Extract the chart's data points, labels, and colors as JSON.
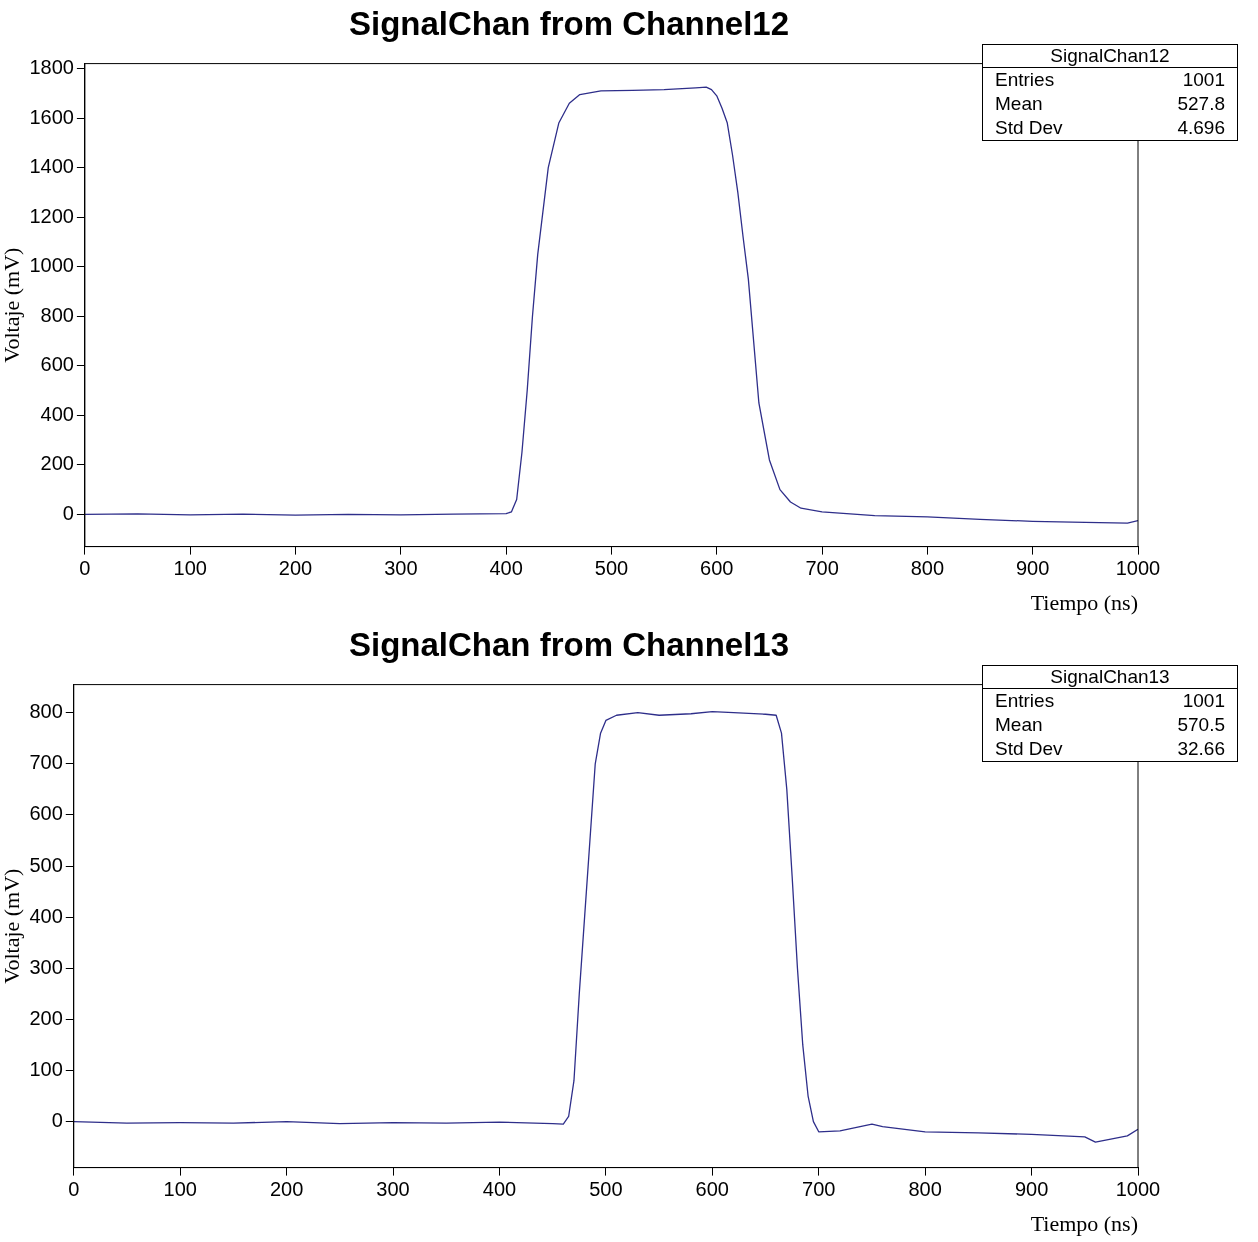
{
  "chart_data": [
    {
      "type": "line",
      "title": "SignalChan from Channel12",
      "xlabel": "Tiempo (ns)",
      "ylabel": "Voltaje (mV)",
      "annotations": [
        "SignalChan12",
        "Entries",
        "1001",
        "Mean",
        "527.8",
        "Std Dev",
        "4.696"
      ],
      "x": [
        0,
        50,
        100,
        150,
        200,
        250,
        300,
        350,
        400,
        405,
        410,
        415,
        420,
        425,
        430,
        440,
        450,
        460,
        470,
        490,
        520,
        550,
        580,
        590,
        595,
        600,
        605,
        610,
        615,
        620,
        625,
        630,
        635,
        640,
        650,
        660,
        670,
        680,
        700,
        750,
        800,
        850,
        900,
        950,
        990,
        1000
      ],
      "series": [
        {
          "color": "#2e2e8a",
          "values": [
            0,
            2,
            -2,
            1,
            -3,
            0,
            -2,
            1,
            3,
            10,
            60,
            250,
            500,
            800,
            1050,
            1400,
            1580,
            1660,
            1695,
            1710,
            1712,
            1715,
            1722,
            1725,
            1715,
            1690,
            1640,
            1580,
            1450,
            1300,
            1120,
            950,
            700,
            450,
            220,
            100,
            50,
            25,
            10,
            -5,
            -10,
            -20,
            -28,
            -32,
            -35,
            -25
          ]
        }
      ],
      "xlim": [
        0,
        1000
      ],
      "xticks": [
        0,
        100,
        200,
        300,
        400,
        500,
        600,
        700,
        800,
        900,
        1000
      ],
      "ylim": [
        -130,
        1820
      ],
      "yticks": [
        0,
        200,
        400,
        600,
        800,
        1000,
        1200,
        1400,
        1600,
        1800
      ],
      "grid": false,
      "legend": false,
      "marker": "none"
    },
    {
      "type": "line",
      "title": "SignalChan from Channel13",
      "xlabel": "Tiempo (ns)",
      "ylabel": "Voltaje (mV)",
      "annotations": [
        "SignalChan13",
        "Entries",
        "1001",
        "Mean",
        "570.5",
        "Std Dev",
        "32.66"
      ],
      "x": [
        0,
        50,
        100,
        150,
        200,
        250,
        300,
        350,
        400,
        450,
        460,
        465,
        470,
        475,
        480,
        485,
        490,
        495,
        500,
        510,
        530,
        550,
        580,
        600,
        620,
        650,
        660,
        665,
        670,
        675,
        680,
        685,
        690,
        695,
        700,
        720,
        750,
        760,
        800,
        850,
        900,
        950,
        960,
        990,
        1000
      ],
      "series": [
        {
          "color": "#2e2e8a",
          "values": [
            0,
            -3,
            -2,
            -3,
            0,
            -4,
            -2,
            -3,
            -1,
            -4,
            -5,
            10,
            80,
            250,
            400,
            550,
            700,
            760,
            785,
            795,
            800,
            795,
            798,
            802,
            800,
            797,
            795,
            760,
            650,
            480,
            300,
            150,
            50,
            0,
            -20,
            -18,
            -5,
            -10,
            -20,
            -22,
            -25,
            -30,
            -40,
            -28,
            -15
          ]
        }
      ],
      "xlim": [
        0,
        1000
      ],
      "xticks": [
        0,
        100,
        200,
        300,
        400,
        500,
        600,
        700,
        800,
        900,
        1000
      ],
      "ylim": [
        -90,
        855
      ],
      "yticks": [
        0,
        100,
        200,
        300,
        400,
        500,
        600,
        700,
        800
      ],
      "grid": false,
      "legend": false,
      "marker": "none"
    }
  ]
}
